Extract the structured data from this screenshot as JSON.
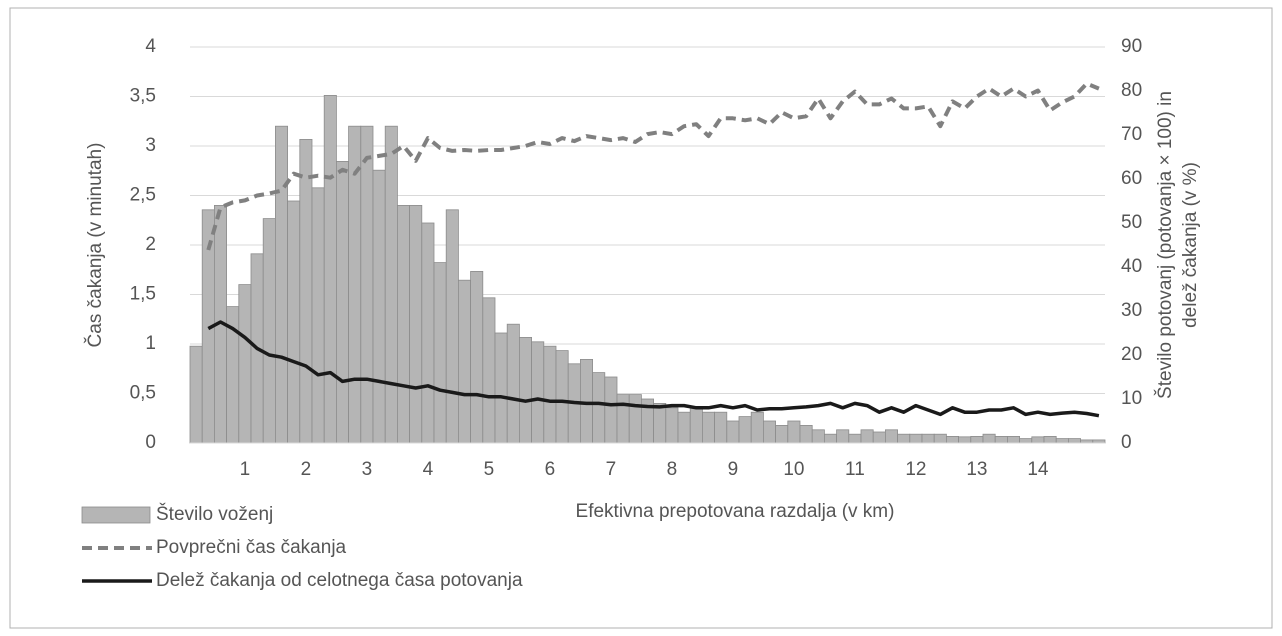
{
  "chart_data": {
    "type": "bar",
    "x_label": "Efektivna prepotovana razdalja (v km)",
    "y_label": "Čas čakanja (v minutah)",
    "y2_label": [
      "Število potovanj (potovanja × 100) in",
      "delež čakanja (v %)"
    ],
    "categories": [
      null,
      null,
      null,
      null,
      "1",
      null,
      null,
      null,
      null,
      "2",
      null,
      null,
      null,
      null,
      "3",
      null,
      null,
      null,
      null,
      "4",
      null,
      null,
      null,
      null,
      "5",
      null,
      null,
      null,
      null,
      "6",
      null,
      null,
      null,
      null,
      "7",
      null,
      null,
      null,
      null,
      "8",
      null,
      null,
      null,
      null,
      "9",
      null,
      null,
      null,
      null,
      "10",
      null,
      null,
      null,
      null,
      "11",
      null,
      null,
      null,
      null,
      "12",
      null,
      null,
      null,
      null,
      "13",
      null,
      null,
      null,
      null,
      "14",
      null,
      null,
      null,
      null,
      null
    ],
    "ylim": [
      0,
      4
    ],
    "yticks": [
      0,
      {
        "value": 0.5,
        "label": "0,5"
      },
      1,
      {
        "value": 1.5,
        "label": "1,5"
      },
      2,
      {
        "value": 2.5,
        "label": "2,5"
      },
      3,
      {
        "value": 3.5,
        "label": "3,5"
      },
      4
    ],
    "y2lim": [
      0,
      90
    ],
    "y2ticks": [
      0,
      10,
      20,
      30,
      40,
      50,
      60,
      70,
      80,
      90
    ],
    "grid": true,
    "legend": "bottom-left",
    "series": [
      {
        "name": "Število voženj",
        "type": "bar",
        "axis": "y2",
        "color": "#b5b5b5",
        "values": [
          22,
          53,
          54,
          31,
          36,
          43,
          51,
          72,
          55,
          69,
          58,
          79,
          64,
          72,
          72,
          62,
          72,
          54,
          54,
          50,
          41,
          53,
          37,
          39,
          33,
          25,
          27,
          24,
          23,
          22,
          21,
          18,
          19,
          16,
          15,
          11,
          11,
          10,
          9,
          8,
          7,
          8,
          7,
          7,
          5,
          6,
          7,
          5,
          4,
          5,
          4,
          3,
          2,
          3,
          2,
          3,
          2.5,
          3,
          2,
          2,
          2,
          2,
          1.5,
          1.4,
          1.5,
          2,
          1.5,
          1.5,
          1,
          1.4,
          1.5,
          1,
          1,
          0.7,
          0.7
        ]
      },
      {
        "name": "Povprečni čas čakanja",
        "type": "line",
        "dashed": true,
        "color": "#808080",
        "values": [
          null,
          1.95,
          2.38,
          2.43,
          2.45,
          2.5,
          2.52,
          2.55,
          2.72,
          2.68,
          2.7,
          2.68,
          2.76,
          2.72,
          2.88,
          2.9,
          2.92,
          3.0,
          2.85,
          3.08,
          2.98,
          2.95,
          2.96,
          2.95,
          2.96,
          2.96,
          2.98,
          3.0,
          3.04,
          3.02,
          3.08,
          3.05,
          3.1,
          3.08,
          3.06,
          3.08,
          3.04,
          3.12,
          3.14,
          3.12,
          3.2,
          3.22,
          3.1,
          3.28,
          3.28,
          3.26,
          3.28,
          3.22,
          3.34,
          3.28,
          3.3,
          3.48,
          3.28,
          3.45,
          3.55,
          3.42,
          3.42,
          3.48,
          3.38,
          3.38,
          3.4,
          3.2,
          3.45,
          3.38,
          3.5,
          3.58,
          3.5,
          3.58,
          3.5,
          3.56,
          3.36,
          3.44,
          3.5,
          3.63,
          3.58
        ]
      },
      {
        "name": "Delež čakanja od celotnega časa potovanja",
        "type": "line",
        "axis": "y2",
        "color": "#1a1a1a",
        "values": [
          null,
          26,
          27.5,
          26,
          24,
          21.5,
          20,
          19.5,
          18.5,
          17.5,
          15.5,
          16,
          14,
          14.5,
          14.5,
          14,
          13.5,
          13,
          12.5,
          13,
          12,
          11.5,
          11,
          11,
          10.5,
          10.5,
          10,
          9.5,
          10,
          9.5,
          9.5,
          9.2,
          9,
          9,
          8.7,
          8.8,
          8.5,
          8.3,
          8.2,
          8.5,
          8.5,
          8,
          8,
          8.5,
          8,
          8.5,
          7.5,
          7.8,
          7.8,
          8,
          8.2,
          8.5,
          9,
          8,
          9,
          8.5,
          7,
          8,
          7,
          8.5,
          7.5,
          6.5,
          8,
          7,
          7,
          7.5,
          7.5,
          8,
          6.5,
          7,
          6.5,
          6.8,
          7,
          6.7,
          6.2
        ]
      }
    ]
  }
}
